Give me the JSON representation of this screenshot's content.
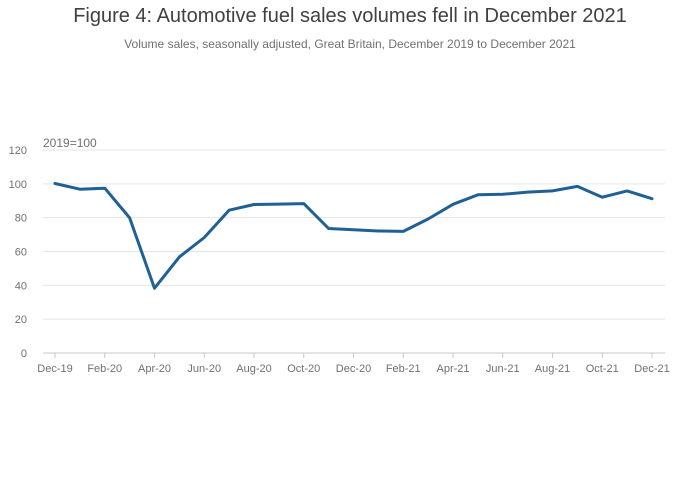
{
  "header": {
    "title": "Figure 4: Automotive fuel sales volumes fell in December 2021",
    "subtitle": "Volume sales, seasonally adjusted, Great Britain, December 2019 to December 2021"
  },
  "chart_data": {
    "type": "line",
    "title": "Figure 4: Automotive fuel sales volumes fell in December 2021",
    "subtitle": "Volume sales, seasonally adjusted, Great Britain, December 2019 to December 2021",
    "unit_label": "2019=100",
    "xlabel": "",
    "ylabel": "",
    "ylim": [
      0,
      120
    ],
    "yticks": [
      0,
      20,
      40,
      60,
      80,
      100,
      120
    ],
    "grid": true,
    "legend": "none",
    "x": [
      "Dec-19",
      "Jan-20",
      "Feb-20",
      "Mar-20",
      "Apr-20",
      "May-20",
      "Jun-20",
      "Jul-20",
      "Aug-20",
      "Sep-20",
      "Oct-20",
      "Nov-20",
      "Dec-20",
      "Jan-21",
      "Feb-21",
      "Mar-21",
      "Apr-21",
      "May-21",
      "Jun-21",
      "Jul-21",
      "Aug-21",
      "Sep-21",
      "Oct-21",
      "Nov-21",
      "Dec-21"
    ],
    "xtick_labels": [
      "Dec-19",
      "Feb-20",
      "Apr-20",
      "Jun-20",
      "Aug-20",
      "Oct-20",
      "Dec-20",
      "Feb-21",
      "Apr-21",
      "Jun-21",
      "Aug-21",
      "Oct-21",
      "Dec-21"
    ],
    "series": [
      {
        "values": [
          100.2,
          96.8,
          97.4,
          79.9,
          38.3,
          56.8,
          68.3,
          84.4,
          87.8,
          88.0,
          88.3,
          73.6,
          72.9,
          72.1,
          71.9,
          79.2,
          87.9,
          93.5,
          93.8,
          95.1,
          95.8,
          98.5,
          92.1,
          95.8,
          91.2
        ],
        "color": "#206095"
      }
    ]
  }
}
